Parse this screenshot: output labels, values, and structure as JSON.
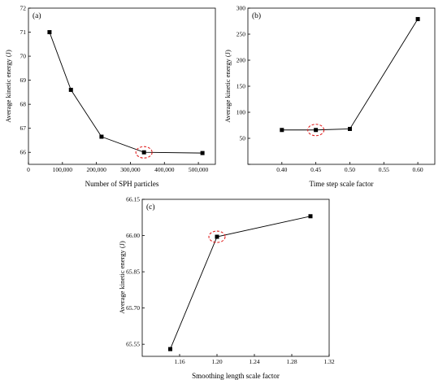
{
  "chart_data": [
    {
      "type": "line",
      "panel": "(a)",
      "xlabel": "Number of SPH particles",
      "ylabel": "Average kinetic energy (J)",
      "xlim": [
        0,
        550000
      ],
      "ylim": [
        65.5,
        72
      ],
      "xticks": [
        0,
        100000,
        200000,
        300000,
        400000,
        500000
      ],
      "xtick_labels": [
        "0",
        "100,000",
        "200,000",
        "300,000",
        "400,000",
        "500,000"
      ],
      "yticks": [
        66,
        67,
        68,
        69,
        70,
        71,
        72
      ],
      "ytick_labels": [
        "66",
        "67",
        "68",
        "69",
        "70",
        "71",
        "72"
      ],
      "x": [
        62000,
        125000,
        215000,
        340000,
        512000
      ],
      "y": [
        71.0,
        68.6,
        66.65,
        66.0,
        65.97
      ],
      "highlight_index": 3,
      "marker": "square"
    },
    {
      "type": "line",
      "panel": "(b)",
      "xlabel": "Time step scale factor",
      "ylabel": "Average kinetic energy (J)",
      "xlim": [
        0.35,
        0.625
      ],
      "ylim": [
        0,
        300
      ],
      "xticks": [
        0.4,
        0.45,
        0.5,
        0.55,
        0.6
      ],
      "xtick_labels": [
        "0.40",
        "0.45",
        "0.50",
        "0.55",
        "0.60"
      ],
      "yticks": [
        0,
        50,
        100,
        150,
        200,
        250,
        300
      ],
      "ytick_labels": [
        "",
        "50",
        "100",
        "150",
        "200",
        "250",
        "300"
      ],
      "x": [
        0.4,
        0.45,
        0.5,
        0.6
      ],
      "y": [
        66,
        66,
        68,
        279
      ],
      "highlight_index": 1,
      "marker": "square"
    },
    {
      "type": "line",
      "panel": "(c)",
      "xlabel": "Smoothing length scale factor",
      "ylabel": "Average kinetic energy (J)",
      "xlim": [
        1.12,
        1.32
      ],
      "ylim": [
        65.5,
        66.15
      ],
      "xticks": [
        1.16,
        1.2,
        1.24,
        1.28,
        1.32
      ],
      "xtick_labels": [
        "1.16",
        "1.20",
        "1.24",
        "1.28",
        "1.32"
      ],
      "yticks": [
        65.55,
        65.7,
        65.85,
        66.0,
        66.15
      ],
      "ytick_labels": [
        "65.55",
        "65.70",
        "65.85",
        "66.00",
        "66.15"
      ],
      "x": [
        1.15,
        1.2,
        1.3
      ],
      "y": [
        65.53,
        65.995,
        66.08
      ],
      "highlight_index": 1,
      "marker": "square"
    }
  ],
  "colors": {
    "line": "#000000",
    "highlight": "#e02020"
  }
}
